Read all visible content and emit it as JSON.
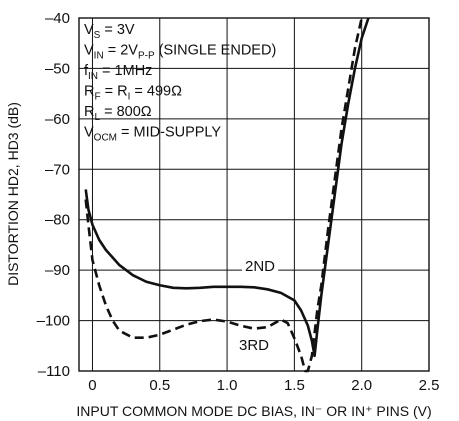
{
  "chart_data": {
    "type": "line",
    "title": "",
    "xlabel": "INPUT COMMON MODE DC BIAS, IN⁻ OR IN⁺ PINS (V)",
    "ylabel": "DISTORTION HD2, HD3 (dB)",
    "xlim": [
      -0.1,
      2.5
    ],
    "ylim": [
      -110,
      -40
    ],
    "xticks": [
      "0",
      "0.5",
      "1.0",
      "1.5",
      "2.0",
      "2.5"
    ],
    "yticks": [
      "–40",
      "–50",
      "–60",
      "–70",
      "–80",
      "–90",
      "–100",
      "–110"
    ],
    "grid": true,
    "conditions": [
      {
        "base": "V",
        "sub": "S",
        "rest": " = 3V"
      },
      {
        "base": "V",
        "sub": "IN",
        "rest": " = 2V",
        "sub2": "P-P",
        "rest2": " (SINGLE ENDED)"
      },
      {
        "base": "f",
        "sub": "IN",
        "rest": " = 1MHz"
      },
      {
        "base": "R",
        "sub": "F",
        "rest": " = R",
        "sub2": "I",
        "rest2": " = 499Ω"
      },
      {
        "base": "R",
        "sub": "L",
        "rest": " = 800Ω"
      },
      {
        "base": "V",
        "sub": "OCM",
        "rest": " = MID-SUPPLY"
      }
    ],
    "series": [
      {
        "name": "2ND",
        "style": "solid",
        "x": [
          -0.05,
          -0.03,
          0.0,
          0.05,
          0.1,
          0.15,
          0.2,
          0.3,
          0.4,
          0.5,
          0.6,
          0.7,
          0.8,
          0.9,
          1.0,
          1.1,
          1.2,
          1.3,
          1.4,
          1.5,
          1.55,
          1.6,
          1.63,
          1.65,
          1.67,
          1.7,
          1.75,
          1.8,
          1.85,
          1.9,
          1.95,
          2.0,
          2.05
        ],
        "y": [
          -74,
          -78,
          -81,
          -84,
          -86,
          -87.5,
          -89,
          -91,
          -92.3,
          -93,
          -93.5,
          -93.6,
          -93.5,
          -93.3,
          -93.3,
          -93.3,
          -93.4,
          -93.8,
          -94.5,
          -96,
          -98,
          -101,
          -104,
          -107,
          -102,
          -95,
          -85,
          -75,
          -65,
          -57,
          -50,
          -44,
          -40
        ]
      },
      {
        "name": "3RD",
        "style": "dashed",
        "x": [
          -0.05,
          -0.03,
          0.0,
          0.05,
          0.1,
          0.15,
          0.2,
          0.3,
          0.4,
          0.5,
          0.6,
          0.7,
          0.8,
          0.9,
          1.0,
          1.1,
          1.2,
          1.3,
          1.4,
          1.45,
          1.5,
          1.55,
          1.58,
          1.6,
          1.63,
          1.67,
          1.7,
          1.75,
          1.8,
          1.85,
          1.9,
          1.95,
          2.0
        ],
        "y": [
          -76,
          -81,
          -88,
          -93,
          -97,
          -100,
          -102,
          -103.4,
          -103.4,
          -102.8,
          -101.8,
          -100.8,
          -100.1,
          -99.8,
          -100.2,
          -101,
          -101.6,
          -101.3,
          -99.8,
          -100.5,
          -103.5,
          -107,
          -110,
          -110,
          -107,
          -98,
          -93,
          -82,
          -72,
          -62,
          -54,
          -46,
          -40
        ]
      }
    ],
    "series_labels": [
      "2ND",
      "3RD"
    ]
  }
}
